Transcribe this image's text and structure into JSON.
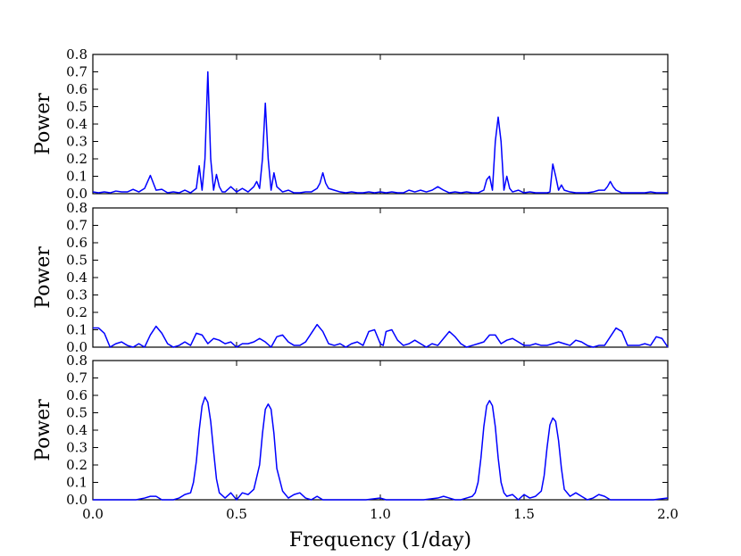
{
  "chart_data": [
    {
      "type": "line",
      "panel": "top",
      "ylabel": "Power",
      "xlabel": "",
      "xlim": [
        0.0,
        2.0
      ],
      "ylim": [
        0.0,
        0.8
      ],
      "yticks": [
        "0.0",
        "0.1",
        "0.2",
        "0.3",
        "0.4",
        "0.5",
        "0.6",
        "0.7",
        "0.8"
      ],
      "color": "#0000ff",
      "x": [
        0.0,
        0.02,
        0.04,
        0.06,
        0.08,
        0.1,
        0.12,
        0.14,
        0.16,
        0.18,
        0.2,
        0.22,
        0.24,
        0.26,
        0.28,
        0.3,
        0.32,
        0.34,
        0.36,
        0.37,
        0.38,
        0.39,
        0.4,
        0.41,
        0.42,
        0.43,
        0.44,
        0.45,
        0.46,
        0.48,
        0.5,
        0.52,
        0.54,
        0.56,
        0.57,
        0.58,
        0.59,
        0.6,
        0.61,
        0.62,
        0.63,
        0.64,
        0.66,
        0.68,
        0.7,
        0.72,
        0.74,
        0.76,
        0.78,
        0.79,
        0.8,
        0.81,
        0.82,
        0.84,
        0.86,
        0.88,
        0.9,
        0.92,
        0.94,
        0.96,
        0.98,
        1.0,
        1.02,
        1.04,
        1.06,
        1.08,
        1.1,
        1.12,
        1.14,
        1.16,
        1.18,
        1.2,
        1.22,
        1.24,
        1.26,
        1.28,
        1.3,
        1.32,
        1.34,
        1.36,
        1.37,
        1.38,
        1.39,
        1.4,
        1.41,
        1.42,
        1.43,
        1.44,
        1.45,
        1.46,
        1.48,
        1.5,
        1.52,
        1.54,
        1.56,
        1.58,
        1.59,
        1.6,
        1.61,
        1.62,
        1.63,
        1.64,
        1.66,
        1.68,
        1.7,
        1.72,
        1.74,
        1.76,
        1.78,
        1.79,
        1.8,
        1.81,
        1.82,
        1.84,
        1.86,
        1.88,
        1.9,
        1.92,
        1.94,
        1.96,
        1.98,
        2.0
      ],
      "y": [
        0.01,
        0.005,
        0.01,
        0.005,
        0.015,
        0.01,
        0.01,
        0.025,
        0.01,
        0.03,
        0.105,
        0.02,
        0.025,
        0.005,
        0.01,
        0.005,
        0.02,
        0.005,
        0.03,
        0.16,
        0.02,
        0.2,
        0.7,
        0.2,
        0.02,
        0.11,
        0.04,
        0.01,
        0.01,
        0.04,
        0.01,
        0.03,
        0.01,
        0.04,
        0.07,
        0.03,
        0.2,
        0.52,
        0.2,
        0.02,
        0.12,
        0.04,
        0.01,
        0.02,
        0.005,
        0.005,
        0.01,
        0.01,
        0.03,
        0.06,
        0.12,
        0.06,
        0.03,
        0.02,
        0.01,
        0.005,
        0.01,
        0.005,
        0.005,
        0.01,
        0.005,
        0.01,
        0.005,
        0.01,
        0.005,
        0.005,
        0.02,
        0.01,
        0.02,
        0.01,
        0.02,
        0.04,
        0.02,
        0.005,
        0.01,
        0.005,
        0.01,
        0.005,
        0.005,
        0.02,
        0.08,
        0.1,
        0.02,
        0.3,
        0.44,
        0.3,
        0.02,
        0.1,
        0.03,
        0.01,
        0.02,
        0.005,
        0.01,
        0.005,
        0.005,
        0.005,
        0.01,
        0.17,
        0.1,
        0.02,
        0.05,
        0.02,
        0.01,
        0.005,
        0.005,
        0.005,
        0.01,
        0.02,
        0.02,
        0.04,
        0.07,
        0.04,
        0.02,
        0.005,
        0.005,
        0.005,
        0.005,
        0.005,
        0.01,
        0.005,
        0.005,
        0.005
      ]
    },
    {
      "type": "line",
      "panel": "middle",
      "ylabel": "Power",
      "xlabel": "",
      "xlim": [
        0.0,
        2.0
      ],
      "ylim": [
        0.0,
        0.8
      ],
      "yticks": [
        "0.0",
        "0.1",
        "0.2",
        "0.3",
        "0.4",
        "0.5",
        "0.6",
        "0.7",
        "0.8"
      ],
      "color": "#0000ff",
      "x": [
        0.0,
        0.02,
        0.04,
        0.06,
        0.08,
        0.1,
        0.12,
        0.14,
        0.16,
        0.18,
        0.2,
        0.22,
        0.24,
        0.26,
        0.28,
        0.3,
        0.32,
        0.34,
        0.36,
        0.38,
        0.4,
        0.42,
        0.44,
        0.46,
        0.48,
        0.5,
        0.52,
        0.54,
        0.56,
        0.58,
        0.6,
        0.62,
        0.64,
        0.66,
        0.68,
        0.7,
        0.72,
        0.74,
        0.76,
        0.78,
        0.8,
        0.82,
        0.84,
        0.86,
        0.88,
        0.9,
        0.92,
        0.94,
        0.96,
        0.98,
        1.0,
        1.01,
        1.02,
        1.04,
        1.06,
        1.08,
        1.1,
        1.12,
        1.14,
        1.16,
        1.18,
        1.2,
        1.22,
        1.24,
        1.26,
        1.28,
        1.3,
        1.32,
        1.34,
        1.36,
        1.38,
        1.4,
        1.42,
        1.44,
        1.46,
        1.48,
        1.5,
        1.52,
        1.54,
        1.56,
        1.58,
        1.6,
        1.62,
        1.64,
        1.66,
        1.68,
        1.7,
        1.72,
        1.74,
        1.76,
        1.78,
        1.8,
        1.82,
        1.84,
        1.86,
        1.88,
        1.9,
        1.92,
        1.94,
        1.96,
        1.98,
        2.0
      ],
      "y": [
        0.11,
        0.11,
        0.08,
        0.0,
        0.02,
        0.03,
        0.01,
        0.0,
        0.02,
        0.0,
        0.07,
        0.12,
        0.08,
        0.02,
        0.0,
        0.01,
        0.03,
        0.01,
        0.08,
        0.07,
        0.02,
        0.05,
        0.04,
        0.02,
        0.03,
        0.0,
        0.02,
        0.02,
        0.03,
        0.05,
        0.03,
        0.0,
        0.06,
        0.07,
        0.03,
        0.01,
        0.01,
        0.03,
        0.08,
        0.13,
        0.09,
        0.02,
        0.01,
        0.02,
        0.0,
        0.02,
        0.03,
        0.01,
        0.09,
        0.1,
        0.02,
        0.01,
        0.09,
        0.1,
        0.04,
        0.01,
        0.02,
        0.04,
        0.02,
        0.0,
        0.02,
        0.01,
        0.05,
        0.09,
        0.06,
        0.02,
        0.0,
        0.01,
        0.02,
        0.03,
        0.07,
        0.07,
        0.02,
        0.04,
        0.05,
        0.03,
        0.01,
        0.01,
        0.02,
        0.01,
        0.01,
        0.02,
        0.03,
        0.02,
        0.01,
        0.04,
        0.03,
        0.01,
        0.0,
        0.01,
        0.01,
        0.06,
        0.11,
        0.09,
        0.01,
        0.01,
        0.01,
        0.02,
        0.01,
        0.06,
        0.05,
        0.0
      ]
    },
    {
      "type": "line",
      "panel": "bottom",
      "ylabel": "Power",
      "xlabel": "Frequency (1/day)",
      "xlim": [
        0.0,
        2.0
      ],
      "ylim": [
        0.0,
        0.8
      ],
      "yticks": [
        "0.0",
        "0.1",
        "0.2",
        "0.3",
        "0.4",
        "0.5",
        "0.6",
        "0.7",
        "0.8"
      ],
      "xticks": [
        "0.0",
        "0.5",
        "1.0",
        "1.5",
        "2.0"
      ],
      "color": "#0000ff",
      "x": [
        0.0,
        0.05,
        0.1,
        0.15,
        0.18,
        0.2,
        0.22,
        0.24,
        0.26,
        0.28,
        0.3,
        0.32,
        0.34,
        0.35,
        0.36,
        0.37,
        0.38,
        0.39,
        0.4,
        0.41,
        0.42,
        0.43,
        0.44,
        0.46,
        0.48,
        0.5,
        0.52,
        0.54,
        0.56,
        0.58,
        0.59,
        0.6,
        0.61,
        0.62,
        0.63,
        0.64,
        0.66,
        0.68,
        0.7,
        0.72,
        0.74,
        0.76,
        0.78,
        0.8,
        0.85,
        0.9,
        0.95,
        1.0,
        1.02,
        1.05,
        1.1,
        1.15,
        1.2,
        1.22,
        1.24,
        1.26,
        1.28,
        1.3,
        1.32,
        1.33,
        1.34,
        1.35,
        1.36,
        1.37,
        1.38,
        1.39,
        1.4,
        1.41,
        1.42,
        1.43,
        1.44,
        1.46,
        1.48,
        1.5,
        1.52,
        1.54,
        1.56,
        1.57,
        1.58,
        1.59,
        1.6,
        1.61,
        1.62,
        1.63,
        1.64,
        1.66,
        1.68,
        1.7,
        1.72,
        1.74,
        1.76,
        1.78,
        1.8,
        1.85,
        1.9,
        1.95,
        2.0
      ],
      "y": [
        0.0,
        0.0,
        0.0,
        0.0,
        0.01,
        0.02,
        0.02,
        0.0,
        0.0,
        0.0,
        0.01,
        0.03,
        0.04,
        0.1,
        0.22,
        0.4,
        0.54,
        0.59,
        0.56,
        0.45,
        0.28,
        0.12,
        0.04,
        0.01,
        0.04,
        0.0,
        0.04,
        0.03,
        0.06,
        0.2,
        0.38,
        0.52,
        0.55,
        0.52,
        0.38,
        0.18,
        0.05,
        0.01,
        0.03,
        0.04,
        0.01,
        0.0,
        0.02,
        0.0,
        0.0,
        0.0,
        0.0,
        0.01,
        0.0,
        0.0,
        0.0,
        0.0,
        0.01,
        0.02,
        0.01,
        0.0,
        0.0,
        0.01,
        0.02,
        0.04,
        0.1,
        0.24,
        0.42,
        0.54,
        0.57,
        0.54,
        0.42,
        0.24,
        0.1,
        0.04,
        0.02,
        0.03,
        0.0,
        0.03,
        0.01,
        0.02,
        0.05,
        0.14,
        0.3,
        0.43,
        0.47,
        0.45,
        0.34,
        0.18,
        0.06,
        0.02,
        0.04,
        0.02,
        0.0,
        0.01,
        0.03,
        0.02,
        0.0,
        0.0,
        0.0,
        0.0,
        0.01
      ]
    }
  ]
}
